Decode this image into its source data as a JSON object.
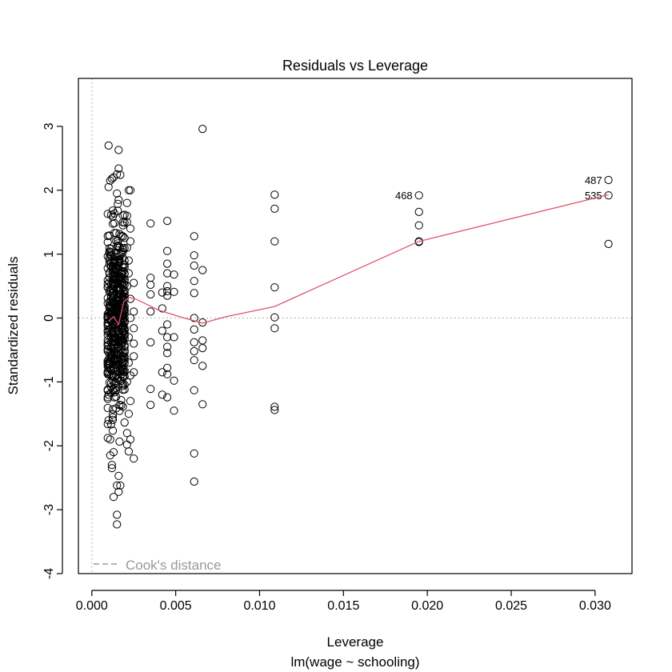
{
  "chart_data": {
    "type": "scatter",
    "title": "Residuals vs Leverage",
    "xlabel": "Leverage",
    "subtitle": "lm(wage ~ schooling)",
    "ylabel": "Standardized residuals",
    "xlim": [
      -0.0008,
      0.0322
    ],
    "ylim": [
      -4,
      3.75
    ],
    "x_ticks": [
      "0.000",
      "0.005",
      "0.010",
      "0.015",
      "0.020",
      "0.025",
      "0.030"
    ],
    "x_tick_values": [
      0,
      0.005,
      0.01,
      0.015,
      0.02,
      0.025,
      0.03
    ],
    "y_ticks": [
      "-4",
      "-3",
      "-2",
      "-1",
      "0",
      "1",
      "2",
      "3"
    ],
    "y_tick_values": [
      -4,
      -3,
      -2,
      -1,
      0,
      1,
      2,
      3
    ],
    "legend": {
      "label": "Cook's distance",
      "position": "bottom-left"
    },
    "colors": {
      "points": "#000000",
      "smooth": "#DF536B",
      "reference": "#BEBEBE",
      "legend": "#999999"
    },
    "labeled_points": [
      {
        "label": "487",
        "x": 0.0308,
        "y": 2.16
      },
      {
        "label": "535",
        "x": 0.0308,
        "y": 1.92
      },
      {
        "label": "468",
        "x": 0.0195,
        "y": 1.92
      }
    ],
    "smooth_line": {
      "x": [
        0.001,
        0.0013,
        0.0016,
        0.0019,
        0.0022,
        0.0026,
        0.004,
        0.0055,
        0.0066,
        0.008,
        0.0109,
        0.0195,
        0.0308
      ],
      "y": [
        -0.05,
        0.02,
        -0.1,
        0.25,
        0.32,
        0.3,
        0.12,
        0.0,
        -0.08,
        0.02,
        0.18,
        1.2,
        1.93
      ]
    },
    "points": [
      [
        0.0066,
        2.96
      ],
      [
        0.001,
        2.7
      ],
      [
        0.0016,
        2.63
      ],
      [
        0.0016,
        2.34
      ],
      [
        0.0015,
        2.25
      ],
      [
        0.0017,
        2.24
      ],
      [
        0.0013,
        2.2
      ],
      [
        0.0011,
        2.15
      ],
      [
        0.0012,
        2.18
      ],
      [
        0.0022,
        2.0
      ],
      [
        0.0023,
        2.0
      ],
      [
        0.0015,
        1.95
      ],
      [
        0.0016,
        1.85
      ],
      [
        0.001,
        2.05
      ],
      [
        0.0109,
        1.93
      ],
      [
        0.0109,
        1.71
      ],
      [
        0.0109,
        1.2
      ],
      [
        0.0109,
        0.48
      ],
      [
        0.0109,
        0.01
      ],
      [
        0.0109,
        -0.16
      ],
      [
        0.0109,
        -1.39
      ],
      [
        0.0109,
        -1.44
      ],
      [
        0.0195,
        1.66
      ],
      [
        0.0195,
        1.45
      ],
      [
        0.0195,
        1.2
      ],
      [
        0.0195,
        1.19
      ],
      [
        0.0308,
        1.16
      ],
      [
        0.0035,
        1.48
      ],
      [
        0.0035,
        0.63
      ],
      [
        0.0035,
        0.52
      ],
      [
        0.0035,
        0.37
      ],
      [
        0.0035,
        0.1
      ],
      [
        0.0035,
        -0.38
      ],
      [
        0.0035,
        -1.11
      ],
      [
        0.0035,
        -1.36
      ],
      [
        0.0042,
        0.4
      ],
      [
        0.0042,
        0.15
      ],
      [
        0.0042,
        -0.2
      ],
      [
        0.0042,
        -0.85
      ],
      [
        0.0042,
        -1.2
      ],
      [
        0.0045,
        1.52
      ],
      [
        0.0045,
        1.05
      ],
      [
        0.0045,
        0.85
      ],
      [
        0.0045,
        0.7
      ],
      [
        0.0045,
        0.5
      ],
      [
        0.0045,
        0.42
      ],
      [
        0.0045,
        0.35
      ],
      [
        0.0045,
        -0.1
      ],
      [
        0.0045,
        -0.3
      ],
      [
        0.0045,
        -0.45
      ],
      [
        0.0045,
        -0.55
      ],
      [
        0.0045,
        -0.78
      ],
      [
        0.0045,
        -0.88
      ],
      [
        0.0045,
        -1.24
      ],
      [
        0.0049,
        0.68
      ],
      [
        0.0049,
        0.41
      ],
      [
        0.0049,
        -0.3
      ],
      [
        0.0049,
        -0.98
      ],
      [
        0.0049,
        -1.45
      ],
      [
        0.0061,
        1.28
      ],
      [
        0.0061,
        0.98
      ],
      [
        0.0061,
        0.82
      ],
      [
        0.0061,
        0.58
      ],
      [
        0.0061,
        0.39
      ],
      [
        0.0061,
        0.0
      ],
      [
        0.0061,
        -0.18
      ],
      [
        0.0061,
        -0.38
      ],
      [
        0.0061,
        -0.52
      ],
      [
        0.0061,
        -0.66
      ],
      [
        0.0061,
        -1.13
      ],
      [
        0.0061,
        -2.12
      ],
      [
        0.0061,
        -2.56
      ],
      [
        0.0066,
        0.75
      ],
      [
        0.0066,
        -0.07
      ],
      [
        0.0066,
        -0.35
      ],
      [
        0.0066,
        -0.47
      ],
      [
        0.0066,
        -0.75
      ],
      [
        0.0066,
        -1.35
      ],
      [
        0.0025,
        -0.16
      ],
      [
        0.0025,
        -0.4
      ],
      [
        0.0025,
        -0.6
      ],
      [
        0.0025,
        -0.85
      ],
      [
        0.0025,
        -2.2
      ],
      [
        0.0025,
        0.1
      ],
      [
        0.0025,
        0.55
      ],
      [
        0.001,
        -1.6
      ],
      [
        0.0011,
        -1.9
      ],
      [
        0.0012,
        -2.3
      ],
      [
        0.0013,
        -2.8
      ],
      [
        0.0015,
        -2.62
      ],
      [
        0.0016,
        -2.72
      ],
      [
        0.0017,
        -2.62
      ],
      [
        0.0015,
        -3.08
      ],
      [
        0.0015,
        -3.23
      ],
      [
        0.0013,
        -2.1
      ],
      [
        0.0011,
        -2.15
      ],
      [
        0.0012,
        -2.35
      ],
      [
        0.0016,
        -2.47
      ],
      [
        0.0021,
        -1.98
      ],
      [
        0.0022,
        -2.09
      ],
      [
        0.001,
        -1.2
      ],
      [
        0.0021,
        1.8
      ],
      [
        0.0021,
        1.6
      ],
      [
        0.0021,
        1.5
      ],
      [
        0.0023,
        1.4
      ],
      [
        0.0023,
        1.2
      ],
      [
        0.0022,
        0.9
      ],
      [
        0.0022,
        0.7
      ],
      [
        0.0021,
        0.5
      ],
      [
        0.0023,
        0.3
      ],
      [
        0.0022,
        -0.3
      ],
      [
        0.0022,
        -0.7
      ],
      [
        0.0021,
        -1.0
      ],
      [
        0.0023,
        -1.3
      ],
      [
        0.0022,
        -1.5
      ],
      [
        0.0021,
        -1.8
      ],
      [
        0.0023,
        -1.9
      ],
      [
        0.0023,
        0.0
      ],
      [
        0.0021,
        1.1
      ],
      [
        0.0023,
        -0.9
      ]
    ]
  }
}
